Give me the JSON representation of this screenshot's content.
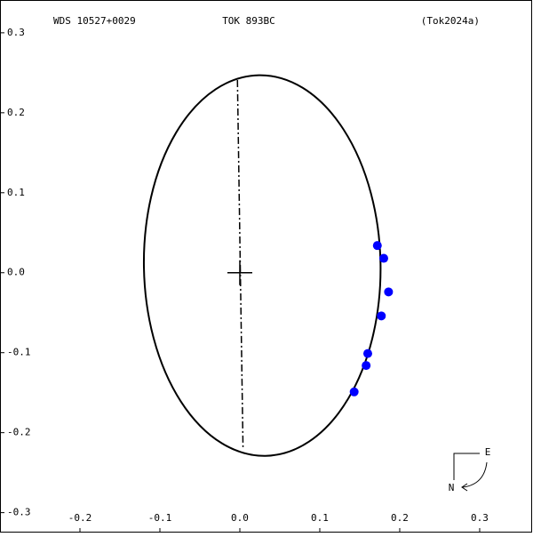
{
  "chart_data": {
    "type": "orbit",
    "title": "TOK 893BC",
    "subtitle": "WDS 10527+0029",
    "reference": "(Tok2024a)",
    "compass": {
      "east": "E",
      "north": "N"
    },
    "series": [
      {
        "color": "#0000ff",
        "x": [
          0.172,
          0.18,
          0.186,
          0.177,
          0.16,
          0.158,
          0.143
        ],
        "values": [
          0.034,
          0.018,
          -0.024,
          -0.054,
          -0.101,
          -0.116,
          -0.149
        ]
      }
    ],
    "orbit": {
      "center": [
        0.028,
        0.009
      ],
      "semi_axes": [
        0.148,
        0.238
      ],
      "rotation_deg": -1,
      "line_of_nodes": [
        [
          -0.003,
          0.241
        ],
        [
          0.004,
          -0.22
        ]
      ]
    },
    "xlim": [
      -0.3,
      0.3667
    ],
    "ylim": [
      -0.326,
      0.341
    ],
    "xticks": [
      -0.2,
      -0.1,
      {
        "value": 0,
        "label": "0.0"
      },
      0.1,
      0.2,
      0.3
    ],
    "yticks": [
      0.3,
      0.2,
      0.1,
      {
        "value": 0,
        "label": "0.0"
      },
      -0.1,
      -0.2,
      -0.3
    ]
  }
}
